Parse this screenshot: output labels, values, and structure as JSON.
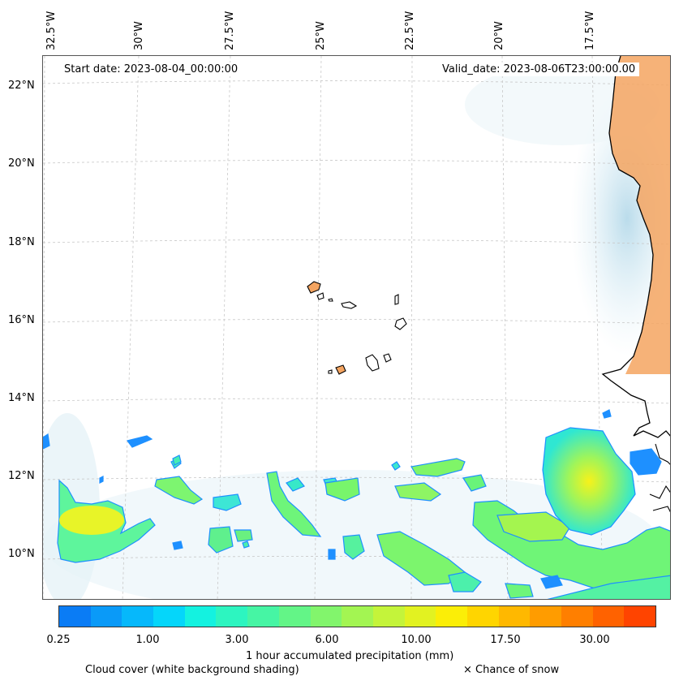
{
  "map": {
    "start_date": "Start date: 2023-08-04_00:00:00",
    "valid_date": "Valid_date: 2023-08-06T23:00:00.00",
    "lon_ticks": [
      "32.5°W",
      "30°W",
      "27.5°W",
      "25°W",
      "22.5°W",
      "20°W",
      "17.5°W"
    ],
    "lat_ticks": [
      "22°N",
      "20°N",
      "18°N",
      "16°N",
      "14°N",
      "12°N",
      "10°N"
    ],
    "land_color": "#f4a460",
    "precip_low_color": "#1e90ff",
    "precip_high_color": "#ffff00"
  },
  "colorbar": {
    "tick_labels": [
      "0.25",
      "1.00",
      "3.00",
      "6.00",
      "10.00",
      "17.50",
      "30.00"
    ],
    "colors": [
      "#0a7cf5",
      "#0a9af8",
      "#06b8fb",
      "#05d6fa",
      "#14f2e0",
      "#2df5c0",
      "#46f5a4",
      "#63f587",
      "#82f56c",
      "#a3f552",
      "#c4f43a",
      "#e2f221",
      "#fbee07",
      "#ffd500",
      "#ffb800",
      "#ff9c00",
      "#ff7f00",
      "#ff6200",
      "#ff4400"
    ],
    "label": "1 hour accumulated precipitation (mm)"
  },
  "legend": {
    "cloud_cover": "Cloud cover (white background shading)",
    "snow": "× Chance of snow"
  }
}
